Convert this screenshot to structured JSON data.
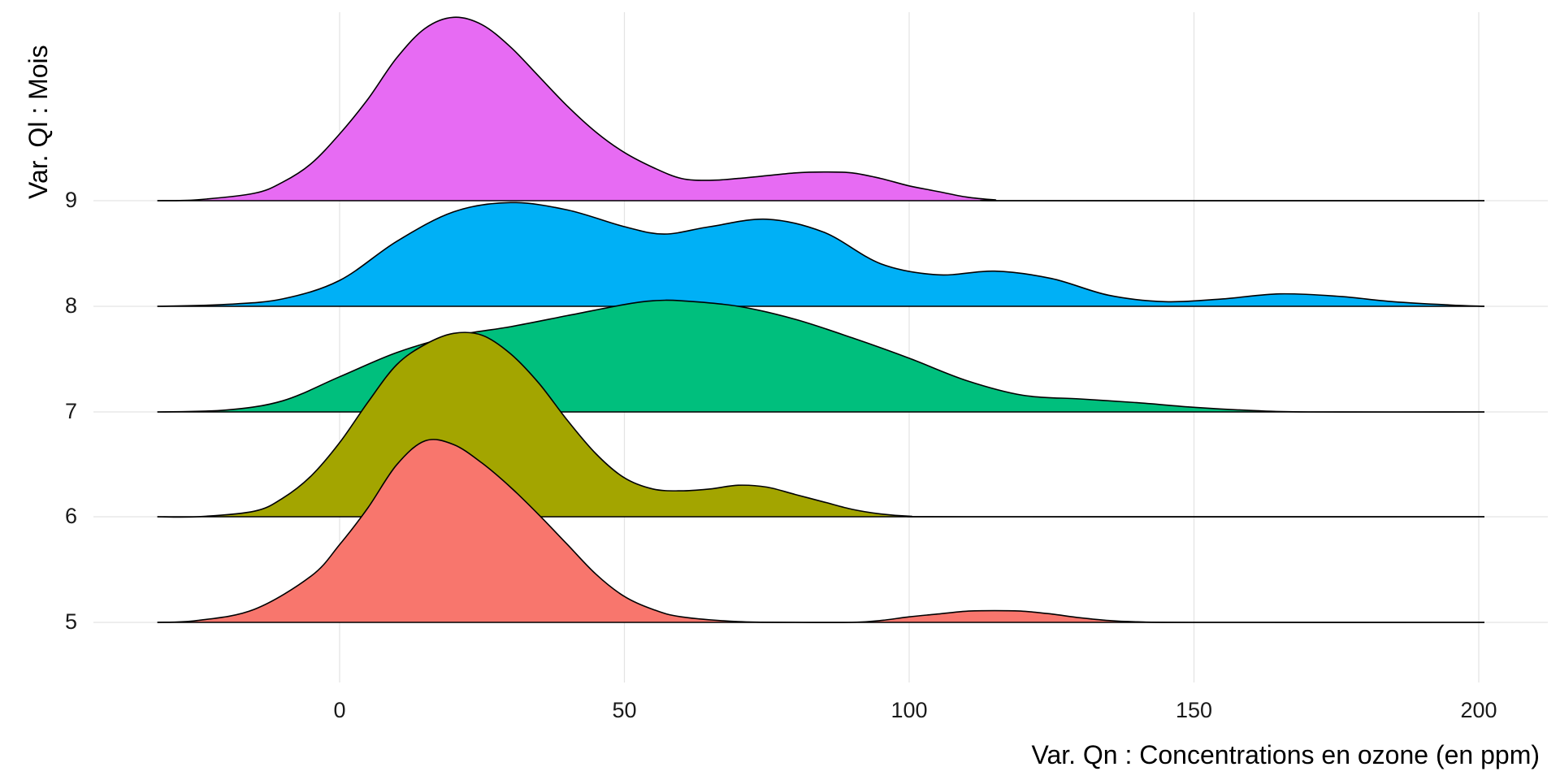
{
  "chart_data": {
    "type": "ridgeline",
    "xlabel": "Var. Qn : Concentrations en ozone (en ppm)",
    "ylabel": "Var. Ql : Mois",
    "xlim": [
      -32,
      212
    ],
    "x_ticks": [
      0,
      50,
      100,
      150,
      200
    ],
    "x_tick_labels": [
      "0",
      "50",
      "100",
      "150",
      "200"
    ],
    "y_categories": [
      "5",
      "6",
      "7",
      "8",
      "9"
    ],
    "density_range": [
      -32,
      201
    ],
    "grid": true,
    "series": [
      {
        "name": "5",
        "color": "#F8766D",
        "points": [
          [
            -32,
            0
          ],
          [
            -25,
            0.01
          ],
          [
            -15,
            0.07
          ],
          [
            -5,
            0.25
          ],
          [
            0,
            0.42
          ],
          [
            5,
            0.62
          ],
          [
            10,
            0.85
          ],
          [
            15,
            0.98
          ],
          [
            20,
            0.96
          ],
          [
            25,
            0.86
          ],
          [
            30,
            0.73
          ],
          [
            35,
            0.58
          ],
          [
            40,
            0.42
          ],
          [
            45,
            0.26
          ],
          [
            50,
            0.14
          ],
          [
            55,
            0.07
          ],
          [
            60,
            0.03
          ],
          [
            70,
            0.004
          ],
          [
            80,
            0
          ],
          [
            90,
            0
          ],
          [
            95,
            0.01
          ],
          [
            100,
            0.03
          ],
          [
            105,
            0.045
          ],
          [
            110,
            0.06
          ],
          [
            115,
            0.063
          ],
          [
            120,
            0.06
          ],
          [
            125,
            0.045
          ],
          [
            130,
            0.025
          ],
          [
            135,
            0.01
          ],
          [
            140,
            0.003
          ],
          [
            150,
            0
          ],
          [
            201,
            0
          ]
        ]
      },
      {
        "name": "6",
        "color": "#A3A500",
        "points": [
          [
            -32,
            0
          ],
          [
            -25,
            0
          ],
          [
            -15,
            0.03
          ],
          [
            -10,
            0.1
          ],
          [
            -5,
            0.22
          ],
          [
            0,
            0.4
          ],
          [
            5,
            0.62
          ],
          [
            10,
            0.82
          ],
          [
            15,
            0.93
          ],
          [
            20,
            0.99
          ],
          [
            25,
            0.98
          ],
          [
            30,
            0.88
          ],
          [
            35,
            0.72
          ],
          [
            40,
            0.52
          ],
          [
            45,
            0.34
          ],
          [
            50,
            0.21
          ],
          [
            55,
            0.15
          ],
          [
            60,
            0.14
          ],
          [
            65,
            0.15
          ],
          [
            70,
            0.17
          ],
          [
            75,
            0.16
          ],
          [
            80,
            0.12
          ],
          [
            85,
            0.08
          ],
          [
            90,
            0.04
          ],
          [
            95,
            0.015
          ],
          [
            100,
            0.003
          ],
          [
            110,
            0
          ],
          [
            201,
            0
          ]
        ]
      },
      {
        "name": "7",
        "color": "#00BF7D",
        "points": [
          [
            -32,
            0
          ],
          [
            -20,
            0.01
          ],
          [
            -10,
            0.06
          ],
          [
            0,
            0.19
          ],
          [
            10,
            0.32
          ],
          [
            20,
            0.41
          ],
          [
            30,
            0.46
          ],
          [
            40,
            0.52
          ],
          [
            50,
            0.58
          ],
          [
            55,
            0.6
          ],
          [
            60,
            0.6
          ],
          [
            70,
            0.57
          ],
          [
            80,
            0.5
          ],
          [
            90,
            0.4
          ],
          [
            100,
            0.29
          ],
          [
            110,
            0.17
          ],
          [
            120,
            0.09
          ],
          [
            130,
            0.07
          ],
          [
            140,
            0.05
          ],
          [
            150,
            0.025
          ],
          [
            160,
            0.008
          ],
          [
            170,
            0
          ],
          [
            201,
            0
          ]
        ]
      },
      {
        "name": "8",
        "color": "#00B0F6",
        "points": [
          [
            -32,
            0
          ],
          [
            -20,
            0.01
          ],
          [
            -10,
            0.04
          ],
          [
            0,
            0.14
          ],
          [
            10,
            0.35
          ],
          [
            20,
            0.51
          ],
          [
            30,
            0.56
          ],
          [
            40,
            0.52
          ],
          [
            50,
            0.43
          ],
          [
            57,
            0.39
          ],
          [
            65,
            0.43
          ],
          [
            75,
            0.47
          ],
          [
            85,
            0.4
          ],
          [
            95,
            0.23
          ],
          [
            105,
            0.17
          ],
          [
            115,
            0.19
          ],
          [
            125,
            0.15
          ],
          [
            135,
            0.06
          ],
          [
            145,
            0.025
          ],
          [
            155,
            0.04
          ],
          [
            165,
            0.067
          ],
          [
            175,
            0.055
          ],
          [
            185,
            0.025
          ],
          [
            195,
            0.007
          ],
          [
            201,
            0
          ]
        ]
      },
      {
        "name": "9",
        "color": "#E76BF3",
        "points": [
          [
            -32,
            0
          ],
          [
            -25,
            0.005
          ],
          [
            -15,
            0.04
          ],
          [
            -10,
            0.1
          ],
          [
            -5,
            0.2
          ],
          [
            0,
            0.36
          ],
          [
            5,
            0.55
          ],
          [
            10,
            0.77
          ],
          [
            15,
            0.93
          ],
          [
            20,
            0.99
          ],
          [
            25,
            0.95
          ],
          [
            30,
            0.83
          ],
          [
            35,
            0.67
          ],
          [
            40,
            0.51
          ],
          [
            45,
            0.37
          ],
          [
            50,
            0.26
          ],
          [
            55,
            0.18
          ],
          [
            60,
            0.12
          ],
          [
            65,
            0.11
          ],
          [
            70,
            0.12
          ],
          [
            75,
            0.135
          ],
          [
            80,
            0.15
          ],
          [
            85,
            0.155
          ],
          [
            90,
            0.15
          ],
          [
            95,
            0.12
          ],
          [
            100,
            0.08
          ],
          [
            105,
            0.05
          ],
          [
            110,
            0.02
          ],
          [
            115,
            0.005
          ],
          [
            120,
            0
          ],
          [
            201,
            0
          ]
        ]
      }
    ]
  }
}
